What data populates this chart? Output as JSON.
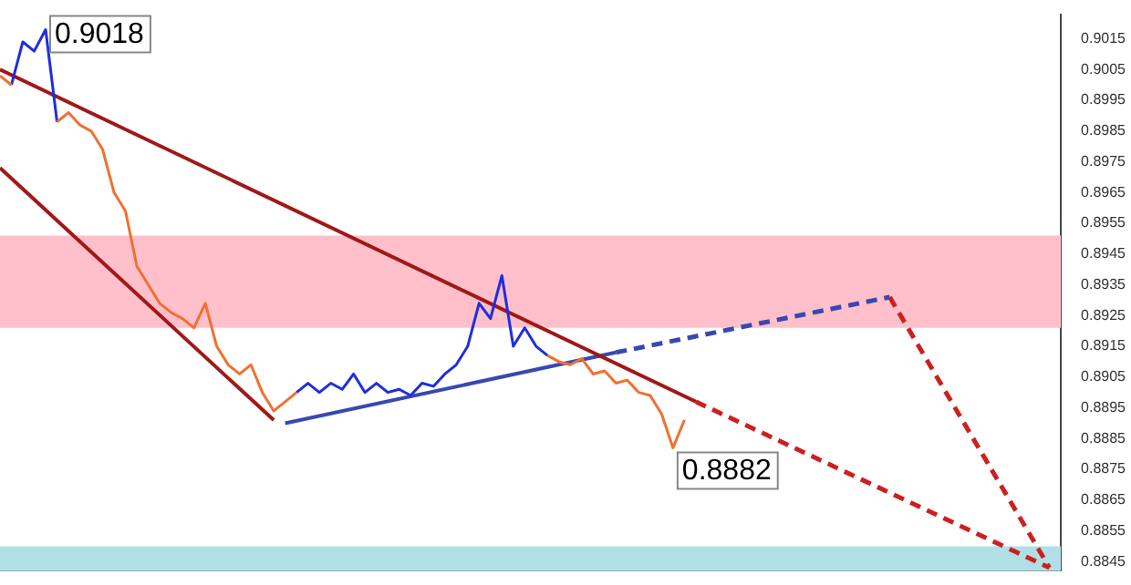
{
  "chart_data": {
    "type": "line",
    "categories": [
      null,
      null,
      null,
      null,
      null,
      null,
      null,
      null,
      null,
      null,
      null,
      null,
      null,
      null,
      null,
      null,
      null,
      null,
      null,
      null,
      null,
      null,
      null,
      null,
      null,
      null,
      null,
      null,
      null,
      null,
      null,
      null,
      null,
      null,
      null,
      null,
      null,
      null,
      null,
      null,
      null,
      null,
      null,
      null,
      null,
      null,
      null,
      null,
      null,
      null,
      null,
      null,
      null,
      null,
      null,
      null,
      null,
      null,
      null,
      null,
      null,
      null,
      null,
      null,
      null,
      null,
      null,
      null,
      null,
      null,
      null,
      null,
      null,
      null,
      null,
      null,
      null,
      null,
      null,
      null,
      null,
      null,
      null,
      null,
      null,
      null,
      null,
      null,
      null,
      null,
      null,
      null,
      null,
      null
    ],
    "series": [
      {
        "color": "#f07030",
        "values": [
          0.9003,
          0.9,
          null,
          null,
          null,
          0.8988,
          0.8991,
          0.8987,
          0.8985,
          0.8979,
          0.8965,
          0.8959,
          0.8941,
          0.8935,
          0.8929,
          0.8926,
          0.8924,
          0.8921,
          0.8929,
          0.8915,
          0.8909,
          0.8906,
          0.8909,
          0.89,
          0.8894,
          0.8897,
          0.89,
          null,
          null,
          null,
          null,
          null,
          null,
          null,
          null,
          null,
          null,
          null,
          null,
          null,
          null,
          null,
          null,
          null,
          null,
          null,
          null,
          null,
          0.8912,
          0.891,
          0.8909,
          0.8911,
          0.8906,
          0.8907,
          0.8903,
          0.8904,
          0.89,
          0.8899,
          0.8893,
          0.8882,
          0.8891,
          null,
          null,
          null,
          null,
          null,
          null,
          null,
          null,
          null,
          null,
          null,
          null,
          null,
          null,
          null,
          null,
          null,
          null,
          null,
          null,
          null,
          null,
          null,
          null,
          null,
          null,
          null,
          null,
          null,
          null,
          null,
          null,
          null
        ]
      },
      {
        "color": "#1f2de0",
        "values": [
          null,
          0.9,
          0.9014,
          0.9011,
          0.9018,
          0.8988,
          null,
          null,
          null,
          null,
          null,
          null,
          null,
          null,
          null,
          null,
          null,
          null,
          null,
          null,
          null,
          null,
          null,
          null,
          null,
          null,
          0.89,
          0.8903,
          0.89,
          0.8903,
          0.8901,
          0.8906,
          0.89,
          0.8903,
          0.89,
          0.8901,
          0.8899,
          0.8903,
          0.8902,
          0.8906,
          0.8909,
          0.8915,
          0.8929,
          0.8924,
          0.8938,
          0.8915,
          0.8921,
          0.8915,
          0.8912,
          null,
          null,
          null,
          null,
          null,
          null,
          null,
          null,
          null,
          null,
          null,
          null,
          null,
          null,
          null,
          null,
          null,
          null,
          null,
          null,
          null,
          null,
          null,
          null,
          null,
          null,
          null,
          null,
          null,
          null,
          null,
          null,
          null,
          null,
          null,
          null,
          null,
          null,
          null,
          null,
          null,
          null,
          null,
          null,
          null
        ]
      },
      {
        "color": "#a01818",
        "values": [
          0.9005,
          null,
          null,
          null,
          null,
          null,
          null,
          null,
          null,
          null,
          null,
          null,
          null,
          null,
          null,
          null,
          null,
          null,
          null,
          null,
          null,
          null,
          null,
          null,
          null,
          null,
          null,
          null,
          null,
          null,
          null,
          null,
          null,
          null,
          null,
          null,
          null,
          null,
          null,
          null,
          null,
          null,
          null,
          null,
          null,
          null,
          null,
          null,
          null,
          null,
          null,
          null,
          null,
          null,
          null,
          null,
          null,
          null,
          null,
          null,
          null,
          0.8897,
          null,
          null,
          null,
          null,
          null,
          null,
          null,
          null,
          null,
          null,
          null,
          null,
          null,
          null,
          null,
          null,
          null,
          null,
          null,
          null,
          null,
          null,
          null,
          null,
          null,
          null,
          null,
          null,
          null,
          null,
          null,
          null
        ]
      },
      {
        "color": "#a01818",
        "values": [
          0.8973,
          null,
          null,
          null,
          null,
          null,
          null,
          null,
          null,
          null,
          null,
          null,
          null,
          null,
          null,
          null,
          null,
          null,
          null,
          null,
          null,
          null,
          null,
          null,
          0.8891,
          null,
          null,
          null,
          null,
          null,
          null,
          null,
          null,
          null,
          null,
          null,
          null,
          null,
          null,
          null,
          null,
          null,
          null,
          null,
          null,
          null,
          null,
          null,
          null,
          null,
          null,
          null,
          null,
          null,
          null,
          null,
          null,
          null,
          null,
          null,
          null,
          null,
          null,
          null,
          null,
          null,
          null,
          null,
          null,
          null,
          null,
          null,
          null,
          null,
          null,
          null,
          null,
          null,
          null,
          null,
          null,
          null,
          null,
          null,
          null,
          null,
          null,
          null,
          null,
          null,
          null,
          null,
          null,
          null
        ]
      },
      {
        "color": "#cc2020",
        "line_style": "dashed",
        "values": [
          null,
          null,
          null,
          null,
          null,
          null,
          null,
          null,
          null,
          null,
          null,
          null,
          null,
          null,
          null,
          null,
          null,
          null,
          null,
          null,
          null,
          null,
          null,
          null,
          null,
          null,
          null,
          null,
          null,
          null,
          null,
          null,
          null,
          null,
          null,
          null,
          null,
          null,
          null,
          null,
          null,
          null,
          null,
          null,
          null,
          null,
          null,
          null,
          null,
          null,
          null,
          null,
          null,
          null,
          null,
          null,
          null,
          null,
          null,
          null,
          null,
          0.8897,
          null,
          null,
          null,
          null,
          null,
          null,
          null,
          null,
          null,
          null,
          null,
          null,
          null,
          null,
          null,
          null,
          null,
          null,
          null,
          null,
          null,
          null,
          null,
          null,
          null,
          null,
          null,
          null,
          null,
          null,
          0.8843,
          null
        ]
      },
      {
        "color": "#3848b0",
        "values": [
          null,
          null,
          null,
          null,
          null,
          null,
          null,
          null,
          null,
          null,
          null,
          null,
          null,
          null,
          null,
          null,
          null,
          null,
          null,
          null,
          null,
          null,
          null,
          null,
          null,
          0.889,
          null,
          null,
          null,
          null,
          null,
          null,
          null,
          null,
          null,
          null,
          null,
          null,
          null,
          null,
          null,
          null,
          null,
          null,
          null,
          null,
          null,
          null,
          null,
          null,
          null,
          null,
          null,
          null,
          0.8913,
          null,
          null,
          null,
          null,
          null,
          null,
          null,
          null,
          null,
          null,
          null,
          null,
          null,
          null,
          null,
          null,
          null,
          null,
          null,
          null,
          null,
          null,
          null,
          null,
          null,
          null,
          null,
          null,
          null,
          null,
          null,
          null,
          null,
          null,
          null,
          null,
          null,
          null,
          null
        ]
      },
      {
        "color": "#3848b0",
        "line_style": "dashed",
        "values": [
          null,
          null,
          null,
          null,
          null,
          null,
          null,
          null,
          null,
          null,
          null,
          null,
          null,
          null,
          null,
          null,
          null,
          null,
          null,
          null,
          null,
          null,
          null,
          null,
          null,
          null,
          null,
          null,
          null,
          null,
          null,
          null,
          null,
          null,
          null,
          null,
          null,
          null,
          null,
          null,
          null,
          null,
          null,
          null,
          null,
          null,
          null,
          null,
          null,
          null,
          null,
          null,
          null,
          null,
          0.8913,
          null,
          null,
          null,
          null,
          null,
          null,
          null,
          null,
          null,
          null,
          null,
          null,
          null,
          null,
          null,
          null,
          null,
          null,
          null,
          null,
          null,
          null,
          null,
          0.8931,
          null,
          null,
          null,
          null,
          null,
          null,
          null,
          null,
          null,
          null,
          null,
          null,
          null,
          null,
          null
        ]
      },
      {
        "color": "#cc2020",
        "line_style": "dashed",
        "values": [
          null,
          null,
          null,
          null,
          null,
          null,
          null,
          null,
          null,
          null,
          null,
          null,
          null,
          null,
          null,
          null,
          null,
          null,
          null,
          null,
          null,
          null,
          null,
          null,
          null,
          null,
          null,
          null,
          null,
          null,
          null,
          null,
          null,
          null,
          null,
          null,
          null,
          null,
          null,
          null,
          null,
          null,
          null,
          null,
          null,
          null,
          null,
          null,
          null,
          null,
          null,
          null,
          null,
          null,
          null,
          null,
          null,
          null,
          null,
          null,
          null,
          null,
          null,
          null,
          null,
          null,
          null,
          null,
          null,
          null,
          null,
          null,
          null,
          null,
          null,
          null,
          null,
          null,
          0.8931,
          null,
          null,
          null,
          null,
          null,
          null,
          null,
          null,
          null,
          null,
          null,
          null,
          null,
          0.8843,
          null
        ]
      }
    ],
    "ylim": [
      0.8842,
      0.9023
    ],
    "yticks": [
      0.8845,
      0.8855,
      0.8865,
      0.8875,
      0.8885,
      0.8895,
      0.8905,
      0.8915,
      0.8925,
      0.8935,
      0.8945,
      0.8955,
      0.8965,
      0.8975,
      0.8985,
      0.8995,
      0.9005,
      0.9015
    ],
    "bands": [
      {
        "axis": "y",
        "from": 0.8921,
        "to": 0.8951,
        "color": "#ffc0cb"
      },
      {
        "axis": "y",
        "from": 0.8842,
        "to": 0.885,
        "color": "#b0e0e6"
      }
    ],
    "annotations": [
      "0.9018",
      "0.8882"
    ],
    "tick_labels": "y",
    "grid": false,
    "legend": false,
    "marker": "none"
  }
}
